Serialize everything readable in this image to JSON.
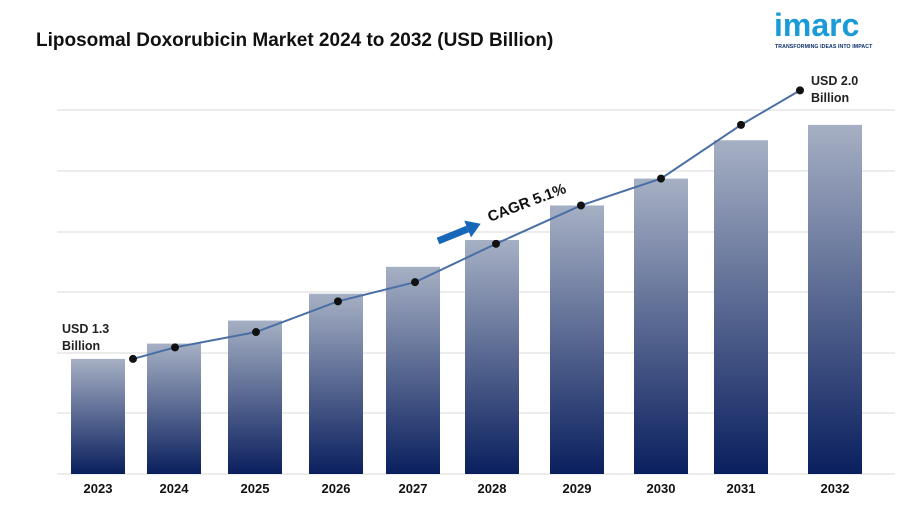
{
  "title": "Liposomal Doxorubicin Market 2024 to 2032 (USD Billion)",
  "logo": {
    "word": "imarc",
    "tagline": "TRANSFORMING IDEAS INTO IMPACT",
    "color": "#1a9bd7",
    "tag_color": "#0b2e6b"
  },
  "chart_data": {
    "type": "bar",
    "categories": [
      "2023",
      "2024",
      "2025",
      "2026",
      "2027",
      "2028",
      "2029",
      "2030",
      "2031",
      "2032"
    ],
    "values": [
      1.3,
      1.34,
      1.4,
      1.47,
      1.54,
      1.61,
      1.7,
      1.77,
      1.87,
      1.91
    ],
    "line_values": [
      1.3,
      1.33,
      1.37,
      1.45,
      1.5,
      1.6,
      1.7,
      1.77,
      1.91,
      2.0
    ],
    "ylim": [
      1.0,
      2.1
    ],
    "grid": true,
    "annotations": {
      "start_line1": "USD 1.3",
      "start_line2": "Billion",
      "end_line1": "USD 2.0",
      "end_line2": "Billion",
      "cagr": "CAGR 5.1%"
    },
    "colors": {
      "bar_top": "#a6b0c4",
      "bar_bottom": "#0a1f5e",
      "line": "#4a6fa5",
      "marker": "#111111",
      "arrow": "#1667b8",
      "grid": "#d9d9d9"
    }
  }
}
